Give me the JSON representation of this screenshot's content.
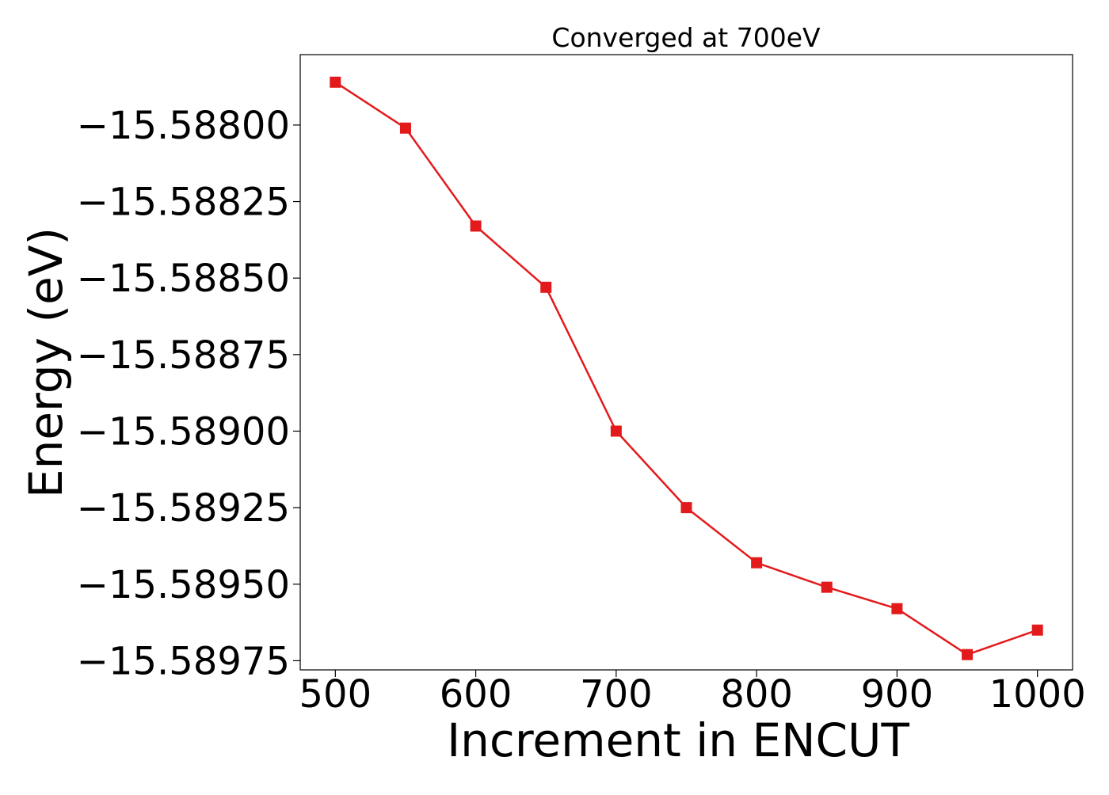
{
  "chart_data": {
    "type": "line",
    "title": "Converged at 700eV",
    "xlabel": "Increment in ENCUT",
    "ylabel": "Energy (eV)",
    "x": [
      500,
      550,
      600,
      650,
      700,
      750,
      800,
      850,
      900,
      950,
      1000
    ],
    "series": [
      {
        "color": "#e31a1c",
        "marker": "square",
        "values": [
          -15.58786,
          -15.58801,
          -15.58833,
          -15.58853,
          -15.589,
          -15.58925,
          -15.58943,
          -15.58951,
          -15.58958,
          -15.58973,
          -15.58965
        ]
      }
    ],
    "xlim": [
      475,
      1025
    ],
    "ylim": [
      -15.58978,
      -15.58777
    ],
    "xticks": [
      500,
      600,
      700,
      800,
      900,
      1000
    ],
    "xtick_labels": [
      "500",
      "600",
      "700",
      "800",
      "900",
      "1000"
    ],
    "yticks": [
      -15.588,
      -15.58825,
      -15.5885,
      -15.58875,
      -15.589,
      -15.58925,
      -15.5895,
      -15.58975
    ],
    "ytick_labels": [
      "−15.58800",
      "−15.58825",
      "−15.58850",
      "−15.58875",
      "−15.58900",
      "−15.58925",
      "−15.58950",
      "−15.58975"
    ],
    "grid": false,
    "legend": "none"
  }
}
